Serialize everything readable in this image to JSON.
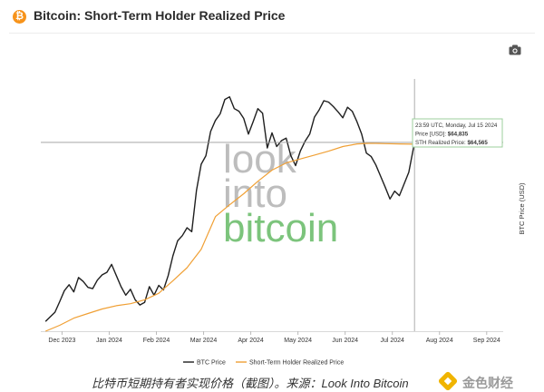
{
  "header": {
    "title": "Bitcoin: Short-Term Holder Realized Price",
    "logo_glyph": "₿"
  },
  "icons": {
    "camera": "camera-icon",
    "bitcoin_logo": "bitcoin-logo-icon",
    "watermark_logo": "jinse-logo-icon"
  },
  "colors": {
    "btc_price": "#1f1f1f",
    "sth_price": "#f0a035",
    "watermark_gray": "#bdbdbd",
    "watermark_green": "#7cc47c",
    "tooltip_border": "#9ccf9c",
    "crosshair": "#9a9a9a"
  },
  "chart_data": {
    "type": "line",
    "title": "Bitcoin: Short-Term Holder Realized Price",
    "xlabel": "",
    "ylabel": "BTC Price (USD)",
    "x_ticks": [
      "Dec 2023",
      "Jan 2024",
      "Feb 2024",
      "Mar 2024",
      "Apr 2024",
      "May 2024",
      "Jun 2024",
      "Jul 2024",
      "Aug 2024",
      "Sep 2024"
    ],
    "x_tick_pos": [
      0,
      1,
      2,
      3,
      4,
      5,
      6,
      7,
      8,
      9
    ],
    "x_range": [
      -0.45,
      9.35
    ],
    "ylim": [
      36000,
      75500
    ],
    "legend": {
      "placement": "bottom",
      "entries": [
        "BTC Price",
        "Short-Term Holder Realized Price"
      ]
    },
    "crosshair": {
      "x": 7.47,
      "y": 64835
    },
    "tooltip": {
      "date": "23:59 UTC, Monday, Jul 15 2024",
      "price_label": "Price [USD]:",
      "price_value": "$64,835",
      "sth_label": "STH Realized Price:",
      "sth_value": "$64,565"
    },
    "series": [
      {
        "name": "BTC Price",
        "x": [
          -0.35,
          -0.25,
          -0.15,
          -0.05,
          0.05,
          0.15,
          0.25,
          0.35,
          0.45,
          0.55,
          0.65,
          0.75,
          0.85,
          0.95,
          1.05,
          1.15,
          1.25,
          1.35,
          1.45,
          1.55,
          1.65,
          1.75,
          1.85,
          1.95,
          2.05,
          2.15,
          2.25,
          2.35,
          2.45,
          2.55,
          2.65,
          2.75,
          2.85,
          2.95,
          3.05,
          3.15,
          3.25,
          3.35,
          3.45,
          3.55,
          3.65,
          3.75,
          3.85,
          3.95,
          4.05,
          4.15,
          4.25,
          4.35,
          4.45,
          4.55,
          4.65,
          4.75,
          4.85,
          4.95,
          5.05,
          5.15,
          5.25,
          5.35,
          5.45,
          5.55,
          5.65,
          5.75,
          5.85,
          5.95,
          6.05,
          6.15,
          6.25,
          6.35,
          6.45,
          6.55,
          6.65,
          6.75,
          6.85,
          6.95,
          7.05,
          7.15,
          7.25,
          7.35,
          7.47
        ],
        "values": [
          37500,
          38200,
          38900,
          40500,
          42200,
          43100,
          42000,
          44200,
          43600,
          42700,
          42500,
          43800,
          44600,
          45000,
          46200,
          44500,
          42800,
          41500,
          42400,
          40800,
          40000,
          40400,
          42800,
          41500,
          43000,
          42300,
          44500,
          47500,
          49800,
          50600,
          51800,
          51200,
          57500,
          61500,
          62800,
          66500,
          68200,
          69200,
          71400,
          71800,
          70000,
          69600,
          68500,
          66100,
          68000,
          70000,
          69300,
          64000,
          66300,
          64200,
          65100,
          65500,
          62800,
          61300,
          63500,
          65000,
          66100,
          68700,
          69800,
          71200,
          71000,
          70300,
          69500,
          68600,
          70200,
          69600,
          68000,
          66100,
          63200,
          62700,
          61400,
          59700,
          58000,
          56200,
          57400,
          56700,
          58500,
          60300,
          64835
        ]
      },
      {
        "name": "Short-Term Holder Realized Price",
        "x": [
          -0.35,
          -0.05,
          0.25,
          0.55,
          0.85,
          1.15,
          1.45,
          1.75,
          2.05,
          2.35,
          2.65,
          2.95,
          3.25,
          3.55,
          3.85,
          4.15,
          4.45,
          4.75,
          5.05,
          5.35,
          5.65,
          5.95,
          6.25,
          6.55,
          6.85,
          7.15,
          7.47
        ],
        "values": [
          36000,
          36900,
          38000,
          38700,
          39400,
          39900,
          40200,
          40800,
          41800,
          43700,
          45700,
          48500,
          53500,
          55300,
          57000,
          58900,
          60600,
          61700,
          62300,
          62900,
          63500,
          64200,
          64600,
          64700,
          64650,
          64600,
          64565
        ]
      }
    ]
  },
  "caption": {
    "text": "比特币短期持有者实现价格（截图）。来源：Look Into Bitcoin",
    "watermark": "金色财经"
  }
}
